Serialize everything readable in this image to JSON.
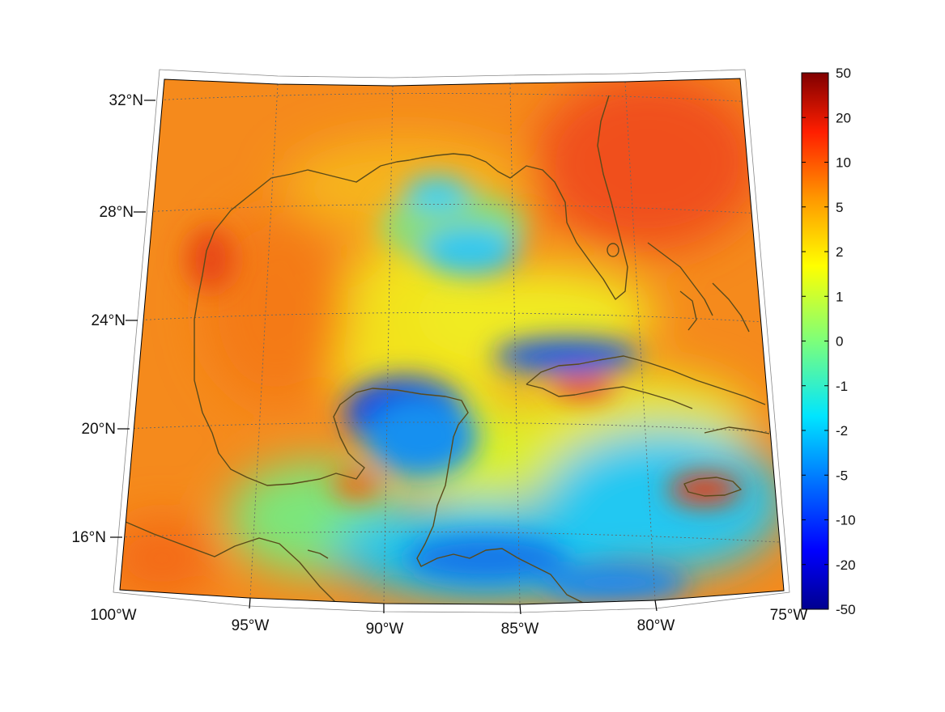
{
  "map": {
    "projection": "conic",
    "lon_range": [
      -100,
      -75
    ],
    "lat_range": [
      14,
      33
    ],
    "coastline_color": "#5a4a1a",
    "graticule": {
      "style": "dotted",
      "color": "#666666"
    },
    "lon_ticks": [
      {
        "value": -100,
        "label": "100°W"
      },
      {
        "value": -95,
        "label": "95°W"
      },
      {
        "value": -90,
        "label": "90°W"
      },
      {
        "value": -85,
        "label": "85°W"
      },
      {
        "value": -80,
        "label": "80°W"
      },
      {
        "value": -75,
        "label": "75°W"
      }
    ],
    "lat_ticks": [
      {
        "value": 16,
        "label": "16°N"
      },
      {
        "value": 20,
        "label": "20°N"
      },
      {
        "value": 24,
        "label": "24°N"
      },
      {
        "value": 28,
        "label": "28°N"
      },
      {
        "value": 32,
        "label": "32°N"
      }
    ]
  },
  "colorbar": {
    "colormap": "jet",
    "scale": "nonlinear",
    "ticks": [
      {
        "value": 50,
        "label": "50"
      },
      {
        "value": 20,
        "label": "20"
      },
      {
        "value": 10,
        "label": "10"
      },
      {
        "value": 5,
        "label": "5"
      },
      {
        "value": 2,
        "label": "2"
      },
      {
        "value": 1,
        "label": "1"
      },
      {
        "value": 0,
        "label": "0"
      },
      {
        "value": -1,
        "label": "-1"
      },
      {
        "value": -2,
        "label": "-2"
      },
      {
        "value": -5,
        "label": "-5"
      },
      {
        "value": -10,
        "label": "-10"
      },
      {
        "value": -20,
        "label": "-20"
      },
      {
        "value": -50,
        "label": "-50"
      }
    ]
  },
  "field_regions": [
    {
      "id": "yucatan-channel-low",
      "level": -10,
      "color": "#1a3fe0"
    },
    {
      "id": "caribbean-low",
      "level": -3,
      "color": "#14c8f0"
    },
    {
      "id": "cuba-north-low",
      "level": -8,
      "color": "#1e5ae6"
    },
    {
      "id": "north-gulf-low",
      "level": -2,
      "color": "#28d2f0"
    },
    {
      "id": "central-gulf-neutral",
      "level": 1,
      "color": "#f0f020"
    },
    {
      "id": "west-gulf-high",
      "level": 5,
      "color": "#f05a14"
    },
    {
      "id": "florida-high",
      "level": 8,
      "color": "#f04a10"
    },
    {
      "id": "jamaica-high",
      "level": 10,
      "color": "#e83c10"
    }
  ]
}
